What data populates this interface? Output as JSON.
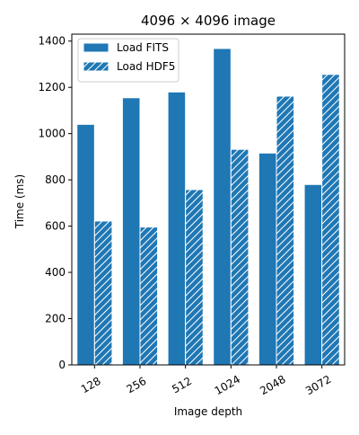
{
  "chart_data": {
    "type": "bar",
    "title": "4096 × 4096 image",
    "xlabel": "Image depth",
    "ylabel": "Time (ms)",
    "categories": [
      "128",
      "256",
      "512",
      "1024",
      "2048",
      "3072"
    ],
    "ylim": [
      0,
      1430
    ],
    "yticks": [
      0,
      200,
      400,
      600,
      800,
      1000,
      1200,
      1400
    ],
    "grid": false,
    "legend_position": "top-left",
    "series": [
      {
        "name": "Load FITS",
        "values": [
          1040,
          1155,
          1180,
          1368,
          916,
          780
        ],
        "pattern": "solid",
        "color": "#1f77b4"
      },
      {
        "name": "Load HDF5",
        "values": [
          622,
          596,
          758,
          932,
          1162,
          1256
        ],
        "pattern": "hatch",
        "color": "#1f77b4"
      }
    ]
  }
}
